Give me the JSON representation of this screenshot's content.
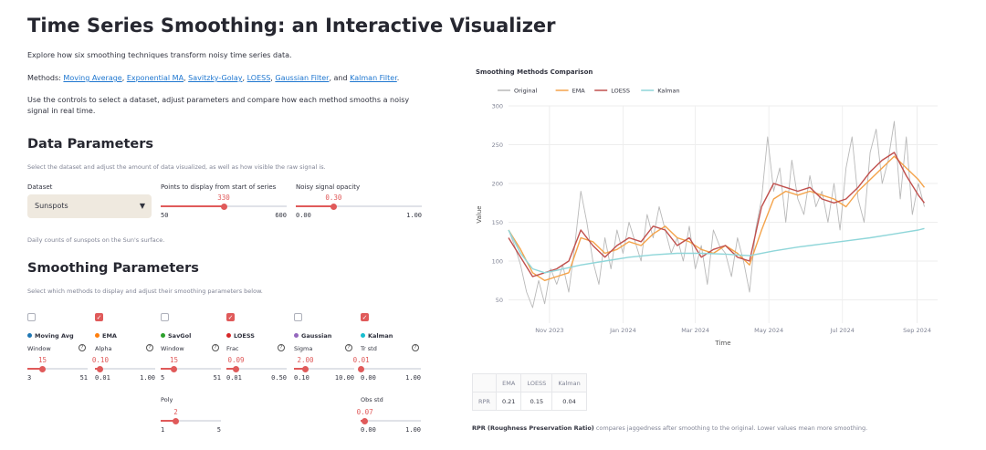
{
  "title": "Time Series Smoothing: an Interactive Visualizer",
  "intro": {
    "line1": "Explore how six smoothing techniques transform noisy time series data.",
    "methods_prefix": "Methods: ",
    "links": [
      "Moving Average",
      "Exponential MA",
      "Savitzky-Golay",
      "LOESS",
      "Gaussian Filter",
      "Kalman Filter"
    ],
    "methods_suffix": ".",
    "and_word": "and",
    "line3": "Use the controls to select a dataset, adjust parameters and compare how each method smooths a noisy signal in real time."
  },
  "data_params": {
    "heading": "Data Parameters",
    "caption": "Select the dataset and adjust the amount of data visualized, as well as how visible the raw signal is.",
    "dataset_label": "Dataset",
    "dataset_value": "Sunspots",
    "dataset_caption": "Daily counts of sunspots on the Sun's surface.",
    "points": {
      "label": "Points to display from start of series",
      "value": "330",
      "min": "50",
      "max": "600",
      "frac": 0.5
    },
    "opacity": {
      "label": "Noisy signal opacity",
      "value": "0.30",
      "min": "0.00",
      "max": "1.00",
      "frac": 0.3
    }
  },
  "smoothing": {
    "heading": "Smoothing Parameters",
    "caption": "Select which methods to display and adjust their smoothing parameters below.",
    "methods": [
      {
        "name": "Moving Avg",
        "color": "#1f77b4",
        "checked": false,
        "param": "Window",
        "value": "15",
        "min": "3",
        "max": "51",
        "frac": 0.25
      },
      {
        "name": "EMA",
        "color": "#ff7f0e",
        "checked": true,
        "param": "Alpha",
        "value": "0.10",
        "min": "0.01",
        "max": "1.00",
        "frac": 0.09
      },
      {
        "name": "SavGol",
        "color": "#2ca02c",
        "checked": false,
        "param": "Window",
        "value": "15",
        "min": "5",
        "max": "51",
        "frac": 0.22
      },
      {
        "name": "LOESS",
        "color": "#d62728",
        "checked": true,
        "param": "Frac",
        "value": "0.09",
        "min": "0.01",
        "max": "0.50",
        "frac": 0.16
      },
      {
        "name": "Gaussian",
        "color": "#9467bd",
        "checked": false,
        "param": "Sigma",
        "value": "2.00",
        "min": "0.10",
        "max": "10.00",
        "frac": 0.19
      },
      {
        "name": "Kalman",
        "color": "#17becf",
        "checked": true,
        "param": "Tr std",
        "value": "0.01",
        "min": "0.00",
        "max": "1.00",
        "frac": 0.01
      }
    ],
    "poly": {
      "label": "Poly",
      "value": "2",
      "min": "1",
      "max": "5",
      "frac": 0.25
    },
    "obs": {
      "label": "Obs std",
      "value": "0.07",
      "min": "0.00",
      "max": "1.00",
      "frac": 0.07
    }
  },
  "chart_data": {
    "type": "line",
    "title": "Smoothing Methods Comparison",
    "xlabel": "Time",
    "ylabel": "Value",
    "legend_position": "top-left",
    "grid": true,
    "ylim": [
      20,
      300
    ],
    "yticks": [
      50,
      100,
      150,
      200,
      250,
      300
    ],
    "xlim": [
      "2023-09-28",
      "2024-09-18"
    ],
    "xticks": [
      {
        "label": "Nov 2023",
        "date": "2023-11-01"
      },
      {
        "label": "Jan 2024",
        "date": "2024-01-01"
      },
      {
        "label": "Mar 2024",
        "date": "2024-03-01"
      },
      {
        "label": "May 2024",
        "date": "2024-05-01"
      },
      {
        "label": "Jul 2024",
        "date": "2024-07-01"
      },
      {
        "label": "Sep 2024",
        "date": "2024-09-01"
      }
    ],
    "series": [
      {
        "name": "Original",
        "color": "#b9b9b9",
        "points": [
          [
            "2023-09-28",
            140
          ],
          [
            "2023-10-03",
            120
          ],
          [
            "2023-10-08",
            95
          ],
          [
            "2023-10-13",
            60
          ],
          [
            "2023-10-18",
            40
          ],
          [
            "2023-10-23",
            75
          ],
          [
            "2023-10-28",
            45
          ],
          [
            "2023-11-02",
            90
          ],
          [
            "2023-11-07",
            70
          ],
          [
            "2023-11-12",
            95
          ],
          [
            "2023-11-17",
            60
          ],
          [
            "2023-11-22",
            120
          ],
          [
            "2023-11-27",
            190
          ],
          [
            "2023-12-02",
            150
          ],
          [
            "2023-12-07",
            100
          ],
          [
            "2023-12-12",
            70
          ],
          [
            "2023-12-17",
            130
          ],
          [
            "2023-12-22",
            90
          ],
          [
            "2023-12-27",
            140
          ],
          [
            "2024-01-01",
            110
          ],
          [
            "2024-01-06",
            150
          ],
          [
            "2024-01-11",
            125
          ],
          [
            "2024-01-16",
            100
          ],
          [
            "2024-01-21",
            160
          ],
          [
            "2024-01-26",
            130
          ],
          [
            "2024-01-31",
            170
          ],
          [
            "2024-02-05",
            140
          ],
          [
            "2024-02-10",
            110
          ],
          [
            "2024-02-15",
            130
          ],
          [
            "2024-02-20",
            100
          ],
          [
            "2024-02-25",
            145
          ],
          [
            "2024-03-01",
            90
          ],
          [
            "2024-03-06",
            120
          ],
          [
            "2024-03-11",
            70
          ],
          [
            "2024-03-16",
            140
          ],
          [
            "2024-03-21",
            120
          ],
          [
            "2024-03-26",
            110
          ],
          [
            "2024-03-31",
            80
          ],
          [
            "2024-04-05",
            130
          ],
          [
            "2024-04-10",
            100
          ],
          [
            "2024-04-15",
            60
          ],
          [
            "2024-04-20",
            140
          ],
          [
            "2024-04-25",
            180
          ],
          [
            "2024-04-30",
            260
          ],
          [
            "2024-05-05",
            190
          ],
          [
            "2024-05-10",
            220
          ],
          [
            "2024-05-15",
            150
          ],
          [
            "2024-05-20",
            230
          ],
          [
            "2024-05-25",
            180
          ],
          [
            "2024-05-30",
            160
          ],
          [
            "2024-06-04",
            210
          ],
          [
            "2024-06-09",
            170
          ],
          [
            "2024-06-14",
            190
          ],
          [
            "2024-06-19",
            150
          ],
          [
            "2024-06-24",
            200
          ],
          [
            "2024-06-29",
            140
          ],
          [
            "2024-07-04",
            220
          ],
          [
            "2024-07-09",
            260
          ],
          [
            "2024-07-14",
            180
          ],
          [
            "2024-07-19",
            150
          ],
          [
            "2024-07-24",
            240
          ],
          [
            "2024-07-29",
            270
          ],
          [
            "2024-08-03",
            200
          ],
          [
            "2024-08-08",
            230
          ],
          [
            "2024-08-13",
            280
          ],
          [
            "2024-08-18",
            180
          ],
          [
            "2024-08-23",
            260
          ],
          [
            "2024-08-28",
            160
          ],
          [
            "2024-09-02",
            200
          ],
          [
            "2024-09-07",
            170
          ]
        ]
      },
      {
        "name": "EMA",
        "color": "#f4a34a",
        "points": [
          [
            "2023-09-28",
            140
          ],
          [
            "2023-10-08",
            115
          ],
          [
            "2023-10-18",
            85
          ],
          [
            "2023-10-28",
            75
          ],
          [
            "2023-11-07",
            80
          ],
          [
            "2023-11-17",
            85
          ],
          [
            "2023-11-27",
            130
          ],
          [
            "2023-12-07",
            125
          ],
          [
            "2023-12-17",
            110
          ],
          [
            "2023-12-27",
            115
          ],
          [
            "2024-01-06",
            125
          ],
          [
            "2024-01-16",
            120
          ],
          [
            "2024-01-26",
            135
          ],
          [
            "2024-02-05",
            145
          ],
          [
            "2024-02-15",
            130
          ],
          [
            "2024-02-25",
            125
          ],
          [
            "2024-03-06",
            115
          ],
          [
            "2024-03-16",
            110
          ],
          [
            "2024-03-26",
            120
          ],
          [
            "2024-04-05",
            110
          ],
          [
            "2024-04-15",
            95
          ],
          [
            "2024-04-25",
            140
          ],
          [
            "2024-05-05",
            180
          ],
          [
            "2024-05-15",
            190
          ],
          [
            "2024-05-25",
            185
          ],
          [
            "2024-06-04",
            190
          ],
          [
            "2024-06-14",
            185
          ],
          [
            "2024-06-24",
            180
          ],
          [
            "2024-07-04",
            170
          ],
          [
            "2024-07-14",
            190
          ],
          [
            "2024-07-24",
            205
          ],
          [
            "2024-08-03",
            220
          ],
          [
            "2024-08-13",
            235
          ],
          [
            "2024-08-23",
            220
          ],
          [
            "2024-09-02",
            205
          ],
          [
            "2024-09-07",
            195
          ]
        ]
      },
      {
        "name": "LOESS",
        "color": "#c0504d",
        "points": [
          [
            "2023-09-28",
            130
          ],
          [
            "2023-10-08",
            105
          ],
          [
            "2023-10-18",
            80
          ],
          [
            "2023-10-28",
            85
          ],
          [
            "2023-11-07",
            90
          ],
          [
            "2023-11-17",
            100
          ],
          [
            "2023-11-27",
            140
          ],
          [
            "2023-12-07",
            120
          ],
          [
            "2023-12-17",
            105
          ],
          [
            "2023-12-27",
            120
          ],
          [
            "2024-01-06",
            130
          ],
          [
            "2024-01-16",
            125
          ],
          [
            "2024-01-26",
            145
          ],
          [
            "2024-02-05",
            140
          ],
          [
            "2024-02-15",
            120
          ],
          [
            "2024-02-25",
            130
          ],
          [
            "2024-03-06",
            105
          ],
          [
            "2024-03-16",
            115
          ],
          [
            "2024-03-26",
            120
          ],
          [
            "2024-04-05",
            105
          ],
          [
            "2024-04-15",
            100
          ],
          [
            "2024-04-25",
            170
          ],
          [
            "2024-05-05",
            200
          ],
          [
            "2024-05-15",
            195
          ],
          [
            "2024-05-25",
            190
          ],
          [
            "2024-06-04",
            195
          ],
          [
            "2024-06-14",
            180
          ],
          [
            "2024-06-24",
            175
          ],
          [
            "2024-07-04",
            180
          ],
          [
            "2024-07-14",
            195
          ],
          [
            "2024-07-24",
            215
          ],
          [
            "2024-08-03",
            230
          ],
          [
            "2024-08-13",
            240
          ],
          [
            "2024-08-23",
            210
          ],
          [
            "2024-09-02",
            185
          ],
          [
            "2024-09-07",
            175
          ]
        ]
      },
      {
        "name": "Kalman",
        "color": "#8fd6d9",
        "points": [
          [
            "2023-09-28",
            140
          ],
          [
            "2023-10-08",
            110
          ],
          [
            "2023-10-18",
            90
          ],
          [
            "2023-10-28",
            85
          ],
          [
            "2023-11-07",
            88
          ],
          [
            "2023-11-27",
            95
          ],
          [
            "2023-12-17",
            100
          ],
          [
            "2024-01-06",
            105
          ],
          [
            "2024-01-26",
            108
          ],
          [
            "2024-02-15",
            110
          ],
          [
            "2024-03-06",
            110
          ],
          [
            "2024-03-26",
            109
          ],
          [
            "2024-04-15",
            107
          ],
          [
            "2024-05-05",
            113
          ],
          [
            "2024-05-25",
            118
          ],
          [
            "2024-06-14",
            122
          ],
          [
            "2024-07-04",
            126
          ],
          [
            "2024-07-24",
            130
          ],
          [
            "2024-08-13",
            135
          ],
          [
            "2024-09-02",
            140
          ],
          [
            "2024-09-07",
            142
          ]
        ]
      }
    ]
  },
  "rpr_table": {
    "headers": [
      "",
      "EMA",
      "LOESS",
      "Kalman"
    ],
    "row_label": "RPR",
    "values": [
      "0.21",
      "0.15",
      "0.04"
    ]
  },
  "rpr_note": {
    "bold": "RPR (Roughness Preservation Ratio)",
    "rest": " compares jaggedness after smoothing to the original. Lower values mean more smoothing."
  }
}
